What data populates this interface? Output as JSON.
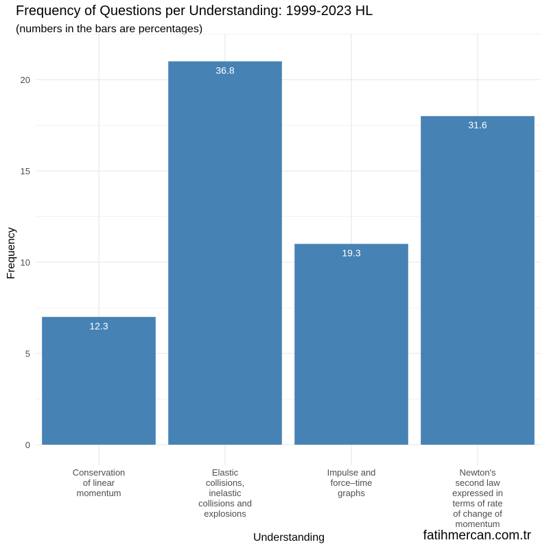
{
  "chart_data": {
    "type": "bar",
    "title": "Frequency of Questions per Understanding: 1999-2023 HL",
    "subtitle": "(numbers in the bars are percentages)",
    "xlabel": "Understanding",
    "ylabel": "Frequency",
    "ylim": [
      0,
      22.5
    ],
    "yticks": [
      0,
      5,
      10,
      15,
      20
    ],
    "grid": true,
    "bar_color": "#4682b4",
    "categories": [
      [
        "Conservation",
        "of linear",
        "momentum"
      ],
      [
        "Elastic",
        "collisions,",
        "inelastic",
        "collisions and",
        "explosions"
      ],
      [
        "Impulse and",
        "force–time",
        "graphs"
      ],
      [
        "Newton's",
        "second law",
        "expressed in",
        "terms of rate",
        "of change of",
        "momentum"
      ]
    ],
    "values": [
      7,
      21,
      11,
      18
    ],
    "bar_labels": [
      "12.3",
      "36.8",
      "19.3",
      "31.6"
    ]
  },
  "watermark": "fatihmercan.com.tr"
}
